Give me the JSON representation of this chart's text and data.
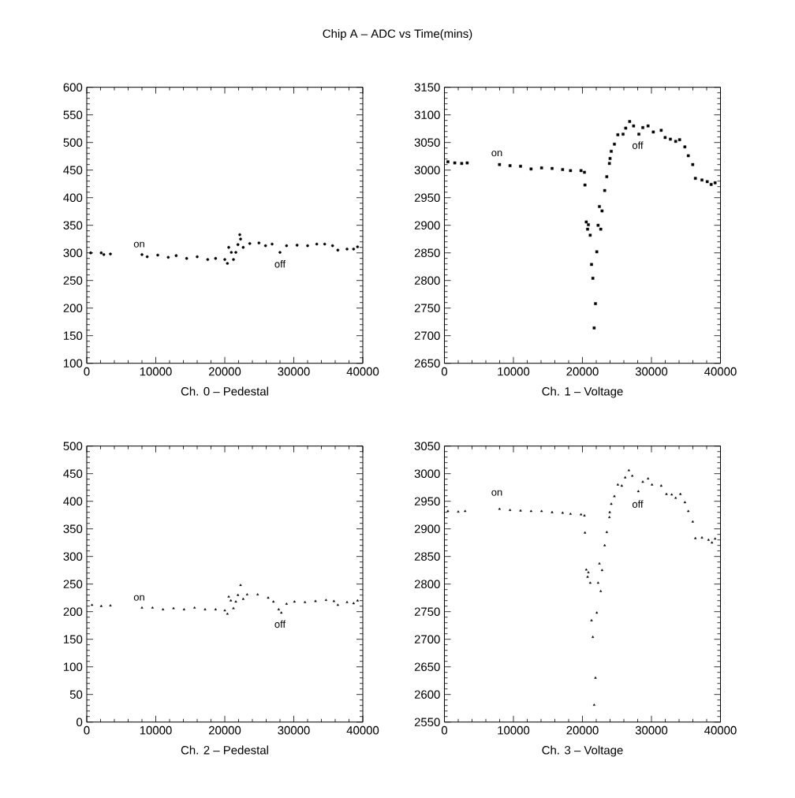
{
  "chart_data": [
    {
      "type": "scatter",
      "title": "Chip A – ADC vs Time(mins)",
      "xlabel": "Ch. 0 – Pedestal",
      "marker": "circle",
      "color": "#000000",
      "x": [
        571,
        2097,
        2476,
        3429,
        8000,
        8763,
        10287,
        11811,
        12954,
        14478,
        16002,
        17526,
        18669,
        20003,
        20384,
        20574,
        20955,
        21259,
        21602,
        21907,
        22174,
        22288,
        22669,
        23621,
        24954,
        25906,
        26858,
        28001,
        28953,
        30477,
        32001,
        33335,
        34478,
        35621,
        36383,
        37716,
        38669,
        39240
      ],
      "values": [
        300,
        300,
        297,
        298,
        297,
        293,
        296,
        292,
        295,
        290,
        293,
        288,
        290,
        288,
        281,
        310,
        301,
        288,
        301,
        315,
        333,
        325,
        310,
        317,
        318,
        313,
        316,
        301,
        313,
        314,
        313,
        316,
        316,
        313,
        305,
        307,
        307,
        311
      ],
      "xlim": [
        0,
        40000
      ],
      "ylim": [
        100,
        600
      ],
      "xticks": [
        0,
        10000,
        20000,
        30000,
        40000
      ],
      "yticks": [
        100,
        150,
        200,
        250,
        300,
        350,
        400,
        450,
        500,
        550,
        600
      ],
      "annotations": [
        "on",
        "off"
      ]
    },
    {
      "type": "scatter",
      "xlabel": "Ch. 1 – Voltage",
      "marker": "square",
      "color": "#000000",
      "x": [
        500,
        1500,
        2500,
        3300,
        7982,
        9506,
        11030,
        12554,
        14078,
        15602,
        17126,
        18269,
        19793,
        20288,
        20364,
        20555,
        20745,
        20860,
        21126,
        21316,
        21507,
        21697,
        21888,
        22078,
        22269,
        22459,
        22650,
        22841,
        23221,
        23526,
        23907,
        24000,
        24174,
        24631,
        25126,
        25888,
        26269,
        26840,
        27412,
        28174,
        28745,
        29507,
        30269,
        31412,
        31983,
        32745,
        33507,
        34078,
        34840,
        35336,
        35983,
        36364,
        37316,
        38079,
        38650,
        39221
      ],
      "values": [
        3015,
        3013,
        3012,
        3013,
        3010,
        3008,
        3007,
        3002,
        3004,
        3003,
        3001,
        2999,
        2999,
        2996,
        2973,
        2906,
        2893,
        2901,
        2882,
        2829,
        2804,
        2714,
        2758,
        2852,
        2900,
        2934,
        2893,
        2926,
        2963,
        2988,
        3012,
        3021,
        3034,
        3047,
        3064,
        3065,
        3076,
        3088,
        3080,
        3065,
        3077,
        3080,
        3069,
        3072,
        3059,
        3056,
        3052,
        3055,
        3042,
        3026,
        3010,
        2985,
        2982,
        2979,
        2974,
        2977
      ],
      "xlim": [
        0,
        40000
      ],
      "ylim": [
        2650,
        3150
      ],
      "xticks": [
        0,
        10000,
        20000,
        30000,
        40000
      ],
      "yticks": [
        2650,
        2700,
        2750,
        2800,
        2850,
        2900,
        2950,
        3000,
        3050,
        3100,
        3150
      ],
      "annotations": [
        "on",
        "off"
      ]
    },
    {
      "type": "scatter",
      "xlabel": "Ch. 2 – Pedestal",
      "marker": "triangle",
      "color": "#000000",
      "x": [
        762,
        2095,
        3429,
        8000,
        9525,
        11049,
        12573,
        14097,
        15621,
        17145,
        18669,
        20003,
        20384,
        20574,
        20879,
        21259,
        21602,
        21907,
        22288,
        22669,
        23240,
        24764,
        26288,
        27050,
        27812,
        28193,
        28953,
        30096,
        31620,
        33144,
        34668,
        35811,
        36383,
        37716,
        38669,
        39240
      ],
      "values": [
        212,
        210,
        211,
        207,
        207,
        204,
        206,
        204,
        207,
        204,
        204,
        202,
        196,
        227,
        220,
        206,
        218,
        230,
        248,
        223,
        231,
        231,
        225,
        218,
        204,
        198,
        214,
        218,
        217,
        219,
        221,
        219,
        212,
        217,
        215,
        220
      ],
      "xlim": [
        0,
        40000
      ],
      "ylim": [
        0,
        500
      ],
      "xticks": [
        0,
        10000,
        20000,
        30000,
        40000
      ],
      "yticks": [
        0,
        50,
        100,
        150,
        200,
        250,
        300,
        350,
        400,
        450,
        500
      ],
      "annotations": [
        "on",
        "off"
      ]
    },
    {
      "type": "scatter",
      "xlabel": "Ch. 3 – Voltage",
      "marker": "triangle",
      "color": "#000000",
      "x": [
        500,
        2000,
        3000,
        7982,
        9506,
        11030,
        12554,
        14078,
        15602,
        17126,
        18269,
        19793,
        20288,
        20364,
        20555,
        20745,
        20860,
        21126,
        21316,
        21507,
        21697,
        21888,
        22078,
        22269,
        22459,
        22650,
        22841,
        23221,
        23526,
        23907,
        23950,
        24174,
        24631,
        25126,
        25698,
        26193,
        26726,
        27221,
        28097,
        28745,
        29507,
        30079,
        31412,
        32174,
        32936,
        33507,
        34193,
        34840,
        35336,
        35983,
        36364,
        37316,
        38269,
        38764,
        39221
      ],
      "values": [
        2932,
        2931,
        2932,
        2936,
        2934,
        2933,
        2932,
        2932,
        2930,
        2929,
        2927,
        2926,
        2924,
        2893,
        2826,
        2813,
        2821,
        2802,
        2734,
        2704,
        2581,
        2630,
        2748,
        2802,
        2837,
        2787,
        2825,
        2870,
        2894,
        2921,
        2930,
        2945,
        2959,
        2980,
        2978,
        2993,
        3006,
        2996,
        2968,
        2985,
        2991,
        2980,
        2978,
        2963,
        2962,
        2956,
        2963,
        2948,
        2932,
        2913,
        2883,
        2884,
        2880,
        2875,
        2882
      ],
      "xlim": [
        0,
        40000
      ],
      "ylim": [
        2550,
        3050
      ],
      "xticks": [
        0,
        10000,
        20000,
        30000,
        40000
      ],
      "yticks": [
        2550,
        2600,
        2650,
        2700,
        2750,
        2800,
        2850,
        2900,
        2950,
        3000,
        3050
      ],
      "annotations": [
        "on",
        "off"
      ]
    }
  ]
}
